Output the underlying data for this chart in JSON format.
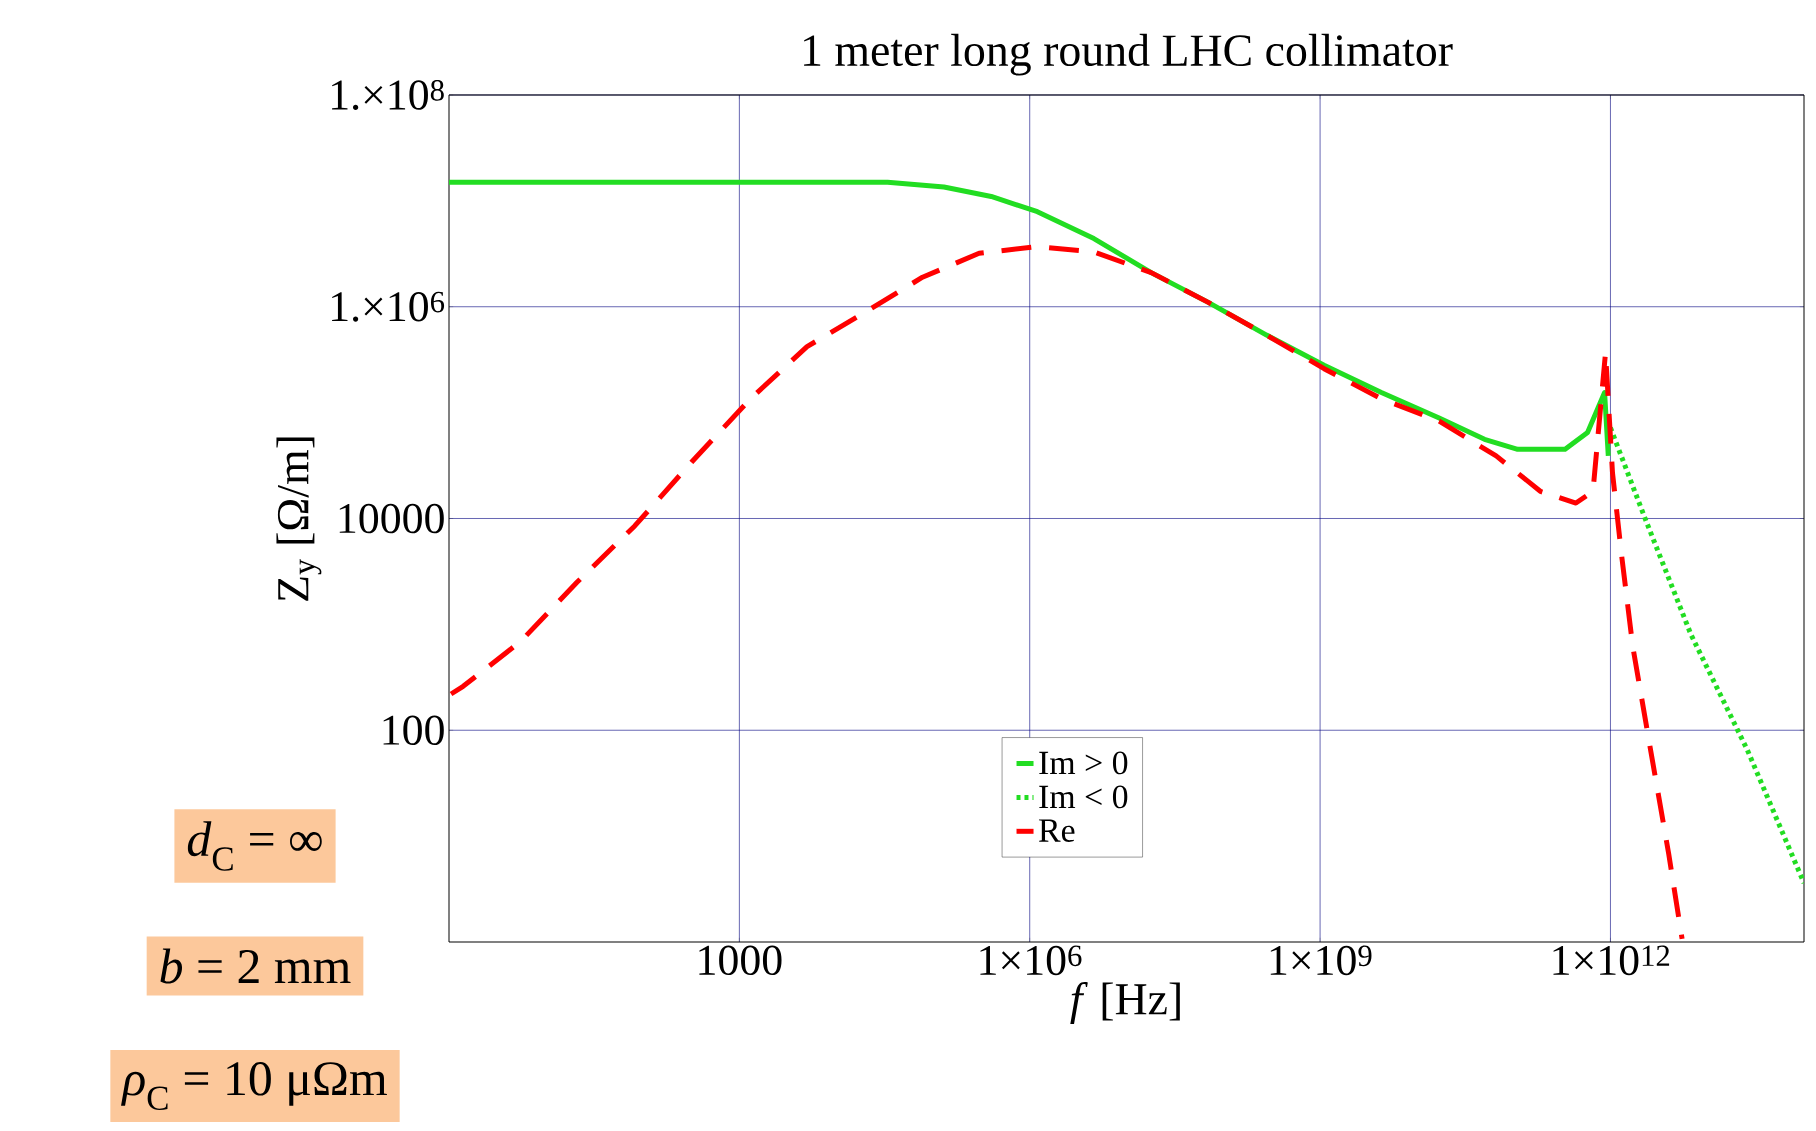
{
  "chart_data": {
    "type": "line",
    "title": "1 meter long round LHC collimator",
    "xlabel": "*f* [Hz]",
    "ylabel": "Z$_{y}$ [Ω/m]",
    "log": "xy",
    "grid": true,
    "legend": "bottom",
    "xlim": [
      1,
      100000000000000.0
    ],
    "ylim": [
      1,
      100000000.0
    ],
    "xticks": [
      1000,
      {
        "value": 1000000.0,
        "label": "1×10$^{6}$"
      },
      {
        "value": 1000000000.0,
        "label": "1×10$^{9}$"
      },
      {
        "value": 1000000000000.0,
        "label": "1×10$^{12}$"
      }
    ],
    "yticks": [
      100,
      10000,
      {
        "value": 1000000.0,
        "label": "1.×10$^{6}$"
      },
      {
        "value": 100000000.0,
        "label": "1.×10$^{8}$"
      }
    ],
    "series": [
      {
        "name": "Im > 0",
        "color": "#22dd22",
        "line_style": "solid",
        "x": [
          1,
          34000.0,
          130000.0,
          400000.0,
          1200000.0,
          4600000.0,
          18000000.0,
          70000000.0,
          280000000.0,
          1100000000.0,
          4300000000.0,
          17000000000.0,
          50000000000.0,
          110000000000.0,
          340000000000.0,
          580000000000.0,
          870000000000.0,
          950000000000.0
        ],
        "values": [
          15000000.0,
          15000000.0,
          13500000.0,
          11000000.0,
          7900000.0,
          4400000.0,
          2100000.0,
          1100000.0,
          540000.0,
          280000.0,
          155000.0,
          89000.0,
          56000.0,
          45000.0,
          45000.0,
          65000.0,
          155000.0,
          39000.0
        ]
      },
      {
        "name": "Im < 0",
        "color": "#22dd22",
        "line_style": "dotted",
        "x": [
          1000000000000.0,
          2300000000000.0,
          6800000000000.0,
          26000000000000.0,
          100000000000000.0
        ],
        "values": [
          72000.0,
          9800.0,
          800,
          65,
          3.6
        ]
      },
      {
        "name": "Re",
        "color": "#ff0000",
        "line_style": "dashed",
        "x": [
          1.05,
          1.4,
          5.5,
          21,
          83,
          320,
          1300,
          5000,
          20000.0,
          78000.0,
          300000.0,
          1200000.0,
          4600000.0,
          18000000.0,
          70000000.0,
          280000000.0,
          1100000000.0,
          4300000000.0,
          17000000000.0,
          66000000000.0,
          190000000000.0,
          440000000000.0,
          660000000000.0,
          890000000000.0,
          1050000000000.0,
          1300000000000.0,
          1700000000000.0,
          2600000000000.0,
          4000000000000.0,
          5500000000000.0
        ],
        "values": [
          220,
          260,
          690,
          2500,
          8500,
          34000.0,
          135000.0,
          420000.0,
          890000.0,
          1900000.0,
          3200000.0,
          3700000.0,
          3300000.0,
          2100000.0,
          1100000.0,
          540000.0,
          260000.0,
          135000.0,
          83000.0,
          39000.0,
          18000.0,
          14000.0,
          18000.0,
          370000.0,
          27000.0,
          4600.0,
          620,
          65,
          6.8,
          1.07
        ]
      }
    ],
    "annotations": [
      "*d*$_{C}$ = ∞",
      "*b* = 2 mm",
      "*ρ*$_{C}$ = 10 μΩm"
    ]
  }
}
